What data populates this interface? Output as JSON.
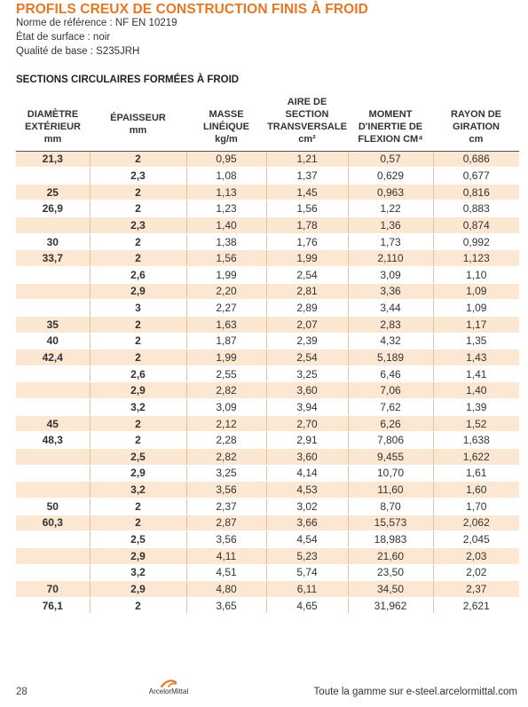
{
  "title": "PROFILS CREUX DE CONSTRUCTION FINIS À FROID",
  "meta": [
    "Norme de référence : NF EN 10219",
    "État de surface : noir",
    "Qualité de base : S235JRH"
  ],
  "section_title": "SECTIONS CIRCULAIRES FORMÉES À FROID",
  "headers": [
    {
      "l1": "DIAMÈTRE",
      "l2": "EXTÉRIEUR",
      "l3": "mm"
    },
    {
      "l1": "ÉPAISSEUR",
      "l2": "mm"
    },
    {
      "l1": "MASSE",
      "l2": "LINÉIQUE",
      "l3": "kg/m"
    },
    {
      "l1": "AIRE DE",
      "l2": "SECTION",
      "l3": "TRANSVERSALE",
      "l4": "cm²"
    },
    {
      "l1": "MOMENT",
      "l2": "D'INERTIE DE",
      "l3": "FLEXION CM⁴"
    },
    {
      "l1": "RAYON DE",
      "l2": "GIRATION",
      "l3": "cm"
    }
  ],
  "rows": [
    {
      "d": "21,3",
      "e": "2",
      "m": "0,95",
      "a": "1,21",
      "i": "0,57",
      "r": "0,686",
      "shaded": true
    },
    {
      "d": "",
      "e": "2,3",
      "m": "1,08",
      "a": "1,37",
      "i": "0,629",
      "r": "0,677",
      "shaded": false
    },
    {
      "d": "25",
      "e": "2",
      "m": "1,13",
      "a": "1,45",
      "i": "0,963",
      "r": "0,816",
      "shaded": true
    },
    {
      "d": "26,9",
      "e": "2",
      "m": "1,23",
      "a": "1,56",
      "i": "1,22",
      "r": "0,883",
      "shaded": false
    },
    {
      "d": "",
      "e": "2,3",
      "m": "1,40",
      "a": "1,78",
      "i": "1,36",
      "r": "0,874",
      "shaded": true
    },
    {
      "d": "30",
      "e": "2",
      "m": "1,38",
      "a": "1,76",
      "i": "1,73",
      "r": "0,992",
      "shaded": false
    },
    {
      "d": "33,7",
      "e": "2",
      "m": "1,56",
      "a": "1,99",
      "i": "2,110",
      "r": "1,123",
      "shaded": true
    },
    {
      "d": "",
      "e": "2,6",
      "m": "1,99",
      "a": "2,54",
      "i": "3,09",
      "r": "1,10",
      "shaded": false
    },
    {
      "d": "",
      "e": "2,9",
      "m": "2,20",
      "a": "2,81",
      "i": "3,36",
      "r": "1,09",
      "shaded": true
    },
    {
      "d": "",
      "e": "3",
      "m": "2,27",
      "a": "2,89",
      "i": "3,44",
      "r": "1,09",
      "shaded": false
    },
    {
      "d": "35",
      "e": "2",
      "m": "1,63",
      "a": "2,07",
      "i": "2,83",
      "r": "1,17",
      "shaded": true
    },
    {
      "d": "40",
      "e": "2",
      "m": "1,87",
      "a": "2,39",
      "i": "4,32",
      "r": "1,35",
      "shaded": false
    },
    {
      "d": "42,4",
      "e": "2",
      "m": "1,99",
      "a": "2,54",
      "i": "5,189",
      "r": "1,43",
      "shaded": true
    },
    {
      "d": "",
      "e": "2,6",
      "m": "2,55",
      "a": "3,25",
      "i": "6,46",
      "r": "1,41",
      "shaded": false
    },
    {
      "d": "",
      "e": "2,9",
      "m": "2,82",
      "a": "3,60",
      "i": "7,06",
      "r": "1,40",
      "shaded": true
    },
    {
      "d": "",
      "e": "3,2",
      "m": "3,09",
      "a": "3,94",
      "i": "7,62",
      "r": "1,39",
      "shaded": false
    },
    {
      "d": "45",
      "e": "2",
      "m": "2,12",
      "a": "2,70",
      "i": "6,26",
      "r": "1,52",
      "shaded": true
    },
    {
      "d": "48,3",
      "e": "2",
      "m": "2,28",
      "a": "2,91",
      "i": "7,806",
      "r": "1,638",
      "shaded": false
    },
    {
      "d": "",
      "e": "2,5",
      "m": "2,82",
      "a": "3,60",
      "i": "9,455",
      "r": "1,622",
      "shaded": true
    },
    {
      "d": "",
      "e": "2,9",
      "m": "3,25",
      "a": "4,14",
      "i": "10,70",
      "r": "1,61",
      "shaded": false
    },
    {
      "d": "",
      "e": "3,2",
      "m": "3,56",
      "a": "4,53",
      "i": "11,60",
      "r": "1,60",
      "shaded": true
    },
    {
      "d": "50",
      "e": "2",
      "m": "2,37",
      "a": "3,02",
      "i": "8,70",
      "r": "1,70",
      "shaded": false
    },
    {
      "d": "60,3",
      "e": "2",
      "m": "2,87",
      "a": "3,66",
      "i": "15,573",
      "r": "2,062",
      "shaded": true
    },
    {
      "d": "",
      "e": "2,5",
      "m": "3,56",
      "a": "4,54",
      "i": "18,983",
      "r": "2,045",
      "shaded": false
    },
    {
      "d": "",
      "e": "2,9",
      "m": "4,11",
      "a": "5,23",
      "i": "21,60",
      "r": "2,03",
      "shaded": true
    },
    {
      "d": "",
      "e": "3,2",
      "m": "4,51",
      "a": "5,74",
      "i": "23,50",
      "r": "2,02",
      "shaded": false
    },
    {
      "d": "70",
      "e": "2,9",
      "m": "4,80",
      "a": "6,11",
      "i": "34,50",
      "r": "2,37",
      "shaded": true
    },
    {
      "d": "76,1",
      "e": "2",
      "m": "3,65",
      "a": "4,65",
      "i": "31,962",
      "r": "2,621",
      "shaded": false
    }
  ],
  "footer": {
    "page_number": "28",
    "logo_text": "ArcelorMittal",
    "link": "Toute la gamme sur e-steel.arcelormittal.com"
  },
  "colors": {
    "accent": "#e87722",
    "row_shade": "#fbe7d2",
    "separator": "#e2c09b"
  },
  "icons": {
    "logo": "arcelormittal-logo-icon"
  }
}
